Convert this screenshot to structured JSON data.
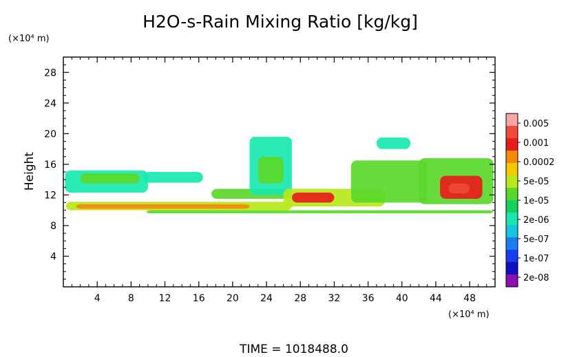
{
  "chart_data": {
    "type": "heatmap",
    "title": "H2O-s-Rain Mixing Ratio [kg/kg]",
    "xlabel": "",
    "ylabel": "Height",
    "x_unit": "(×10⁴ m)",
    "y_unit": "(×10⁴ m)",
    "xlim": [
      0,
      51
    ],
    "ylim": [
      0,
      30
    ],
    "x_ticks": [
      4,
      8,
      12,
      16,
      20,
      24,
      28,
      32,
      36,
      40,
      44,
      48
    ],
    "y_ticks": [
      4,
      8,
      12,
      16,
      20,
      24,
      28
    ],
    "colorbar": {
      "labels": [
        "0.005",
        "0.001",
        "0.0002",
        "5e-05",
        "1e-05",
        "2e-06",
        "5e-07",
        "1e-07",
        "2e-08"
      ],
      "colors": [
        "#f7a6a6",
        "#f04a3a",
        "#e81c1c",
        "#f58a0a",
        "#f5c800",
        "#b8e81a",
        "#5ad82a",
        "#14d060",
        "#18e8b0",
        "#14c4e0",
        "#1a7ef0",
        "#1a3cf0",
        "#1010c0",
        "#8a10b0"
      ]
    },
    "regions": [
      {
        "x": [
          9.8,
          50.8
        ],
        "y": [
          9.6,
          10.0
        ],
        "level": 6
      },
      {
        "x": [
          0.3,
          27.0
        ],
        "y": [
          10.0,
          11.1
        ],
        "level": 5
      },
      {
        "x": [
          1.5,
          22.0
        ],
        "y": [
          10.2,
          10.8
        ],
        "level": 3
      },
      {
        "x": [
          0.2,
          10.0
        ],
        "y": [
          12.3,
          15.2
        ],
        "level": 8
      },
      {
        "x": [
          2.0,
          9.0
        ],
        "y": [
          13.5,
          14.8
        ],
        "level": 6
      },
      {
        "x": [
          9.5,
          16.5
        ],
        "y": [
          13.6,
          15.0
        ],
        "level": 8
      },
      {
        "x": [
          17.5,
          27.0
        ],
        "y": [
          11.5,
          12.8
        ],
        "level": 6
      },
      {
        "x": [
          22.0,
          27.0
        ],
        "y": [
          12.0,
          19.6
        ],
        "level": 8
      },
      {
        "x": [
          23.0,
          26.0
        ],
        "y": [
          13.5,
          17.0
        ],
        "level": 6
      },
      {
        "x": [
          26.0,
          38.0
        ],
        "y": [
          10.5,
          12.8
        ],
        "level": 5
      },
      {
        "x": [
          27.0,
          32.0
        ],
        "y": [
          11.0,
          12.3
        ],
        "level": 2
      },
      {
        "x": [
          34.0,
          43.0
        ],
        "y": [
          11.0,
          16.5
        ],
        "level": 6
      },
      {
        "x": [
          37.0,
          41.0
        ],
        "y": [
          18.0,
          19.5
        ],
        "level": 8
      },
      {
        "x": [
          42.0,
          50.8
        ],
        "y": [
          10.8,
          16.8
        ],
        "level": 6
      },
      {
        "x": [
          44.5,
          49.5
        ],
        "y": [
          11.5,
          14.5
        ],
        "level": 2
      },
      {
        "x": [
          45.5,
          48.0
        ],
        "y": [
          12.2,
          13.5
        ],
        "level": 1
      }
    ]
  },
  "footer": {
    "time_label": "TIME = 1018488.0"
  }
}
